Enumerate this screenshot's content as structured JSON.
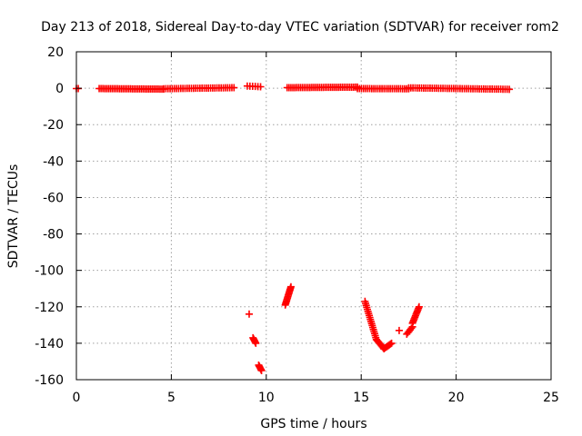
{
  "chart_data": {
    "type": "scatter",
    "title": "Day 213 of 2018, Sidereal Day-to-day VTEC variation (SDTVAR) for receiver rom2",
    "xlabel": "GPS time / hours",
    "ylabel": "SDTVAR / TECUs",
    "xlim": [
      0,
      25
    ],
    "ylim": [
      -160,
      20
    ],
    "xticks": [
      0,
      5,
      10,
      15,
      20,
      25
    ],
    "yticks": [
      20,
      0,
      -20,
      -40,
      -60,
      -80,
      -100,
      -120,
      -140,
      -160
    ],
    "grid": true,
    "marker": "+",
    "color": "#ff0000",
    "series": [
      {
        "name": "SDTVAR",
        "segments": [
          {
            "x0": 0.0,
            "x1": 0.1,
            "y0": -0.2,
            "y1": -0.2,
            "n": 2
          },
          {
            "x0": 1.2,
            "x1": 4.6,
            "y0": -0.2,
            "y1": -0.5,
            "n": 36
          },
          {
            "x0": 4.6,
            "x1": 8.3,
            "y0": -0.3,
            "y1": 0.3,
            "n": 34
          },
          {
            "x0": 9.0,
            "x1": 9.7,
            "y0": 1.2,
            "y1": 0.8,
            "n": 6
          },
          {
            "x0": 11.1,
            "x1": 14.8,
            "y0": 0.3,
            "y1": 0.6,
            "n": 38
          },
          {
            "x0": 14.8,
            "x1": 17.5,
            "y0": -0.2,
            "y1": -0.3,
            "n": 26
          },
          {
            "x0": 17.5,
            "x1": 22.8,
            "y0": 0.2,
            "y1": -0.6,
            "n": 48
          },
          {
            "x0": 9.1,
            "x1": 9.1,
            "y0": -124,
            "y1": -124,
            "n": 1
          },
          {
            "x0": 9.3,
            "x1": 9.45,
            "y0": -137,
            "y1": -140,
            "n": 6
          },
          {
            "x0": 9.6,
            "x1": 9.75,
            "y0": -152,
            "y1": -155,
            "n": 6
          },
          {
            "x0": 11.0,
            "x1": 11.3,
            "y0": -119,
            "y1": -109,
            "n": 14
          },
          {
            "x0": 15.2,
            "x1": 15.8,
            "y0": -117,
            "y1": -138,
            "n": 20
          },
          {
            "x0": 15.8,
            "x1": 16.2,
            "y0": -138,
            "y1": -143,
            "n": 10
          },
          {
            "x0": 16.2,
            "x1": 16.6,
            "y0": -143,
            "y1": -140,
            "n": 8
          },
          {
            "x0": 17.0,
            "x1": 17.0,
            "y0": -133,
            "y1": -133,
            "n": 1
          },
          {
            "x0": 17.4,
            "x1": 17.7,
            "y0": -135,
            "y1": -131,
            "n": 6
          },
          {
            "x0": 17.7,
            "x1": 18.05,
            "y0": -129,
            "y1": -120,
            "n": 12
          }
        ]
      }
    ]
  }
}
